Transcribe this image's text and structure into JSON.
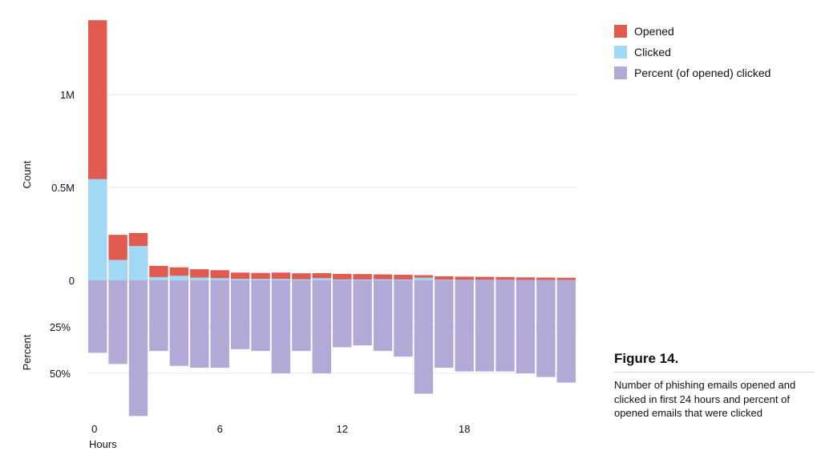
{
  "chart_data": {
    "type": "bar",
    "x": [
      0,
      1,
      2,
      3,
      4,
      5,
      6,
      7,
      8,
      9,
      10,
      11,
      12,
      13,
      14,
      15,
      16,
      17,
      18,
      19,
      20,
      21,
      22,
      23
    ],
    "series": [
      {
        "name": "Opened",
        "color": "#e05a4f",
        "values": [
          1400000,
          245000,
          255000,
          78000,
          70000,
          60000,
          55000,
          42000,
          40000,
          42000,
          38000,
          39000,
          35000,
          34000,
          32000,
          30000,
          28000,
          22000,
          20000,
          19000,
          18000,
          16000,
          15000,
          14000
        ]
      },
      {
        "name": "Clicked",
        "color": "#a0d8f5",
        "values": [
          545000,
          110000,
          185000,
          18000,
          25000,
          15000,
          12000,
          8000,
          8000,
          8000,
          6000,
          12000,
          5000,
          5000,
          6000,
          5000,
          15000,
          4000,
          3000,
          3000,
          3000,
          2000,
          2000,
          2000
        ]
      },
      {
        "name": "Percent (of opened) clicked",
        "color": "#b3a9d6",
        "values": [
          39,
          45,
          73,
          38,
          46,
          47,
          47,
          37,
          38,
          50,
          38,
          50,
          36,
          35,
          38,
          41,
          61,
          47,
          49,
          49,
          49,
          50,
          52,
          55
        ]
      }
    ],
    "count_axis": {
      "label": "Count",
      "ticks": [
        "0",
        "0.5M",
        "1M"
      ]
    },
    "percent_axis": {
      "label": "Percent",
      "ticks": [
        "25%",
        "50%"
      ]
    },
    "x_axis": {
      "label": "Hours",
      "ticks": [
        "0",
        "6",
        "12",
        "18"
      ]
    },
    "legend_position": "top-right",
    "grid": true
  },
  "figure": {
    "title": "Figure 14.",
    "caption": "Number of phishing emails opened and clicked in first 24 hours and percent of opened emails that were clicked"
  }
}
